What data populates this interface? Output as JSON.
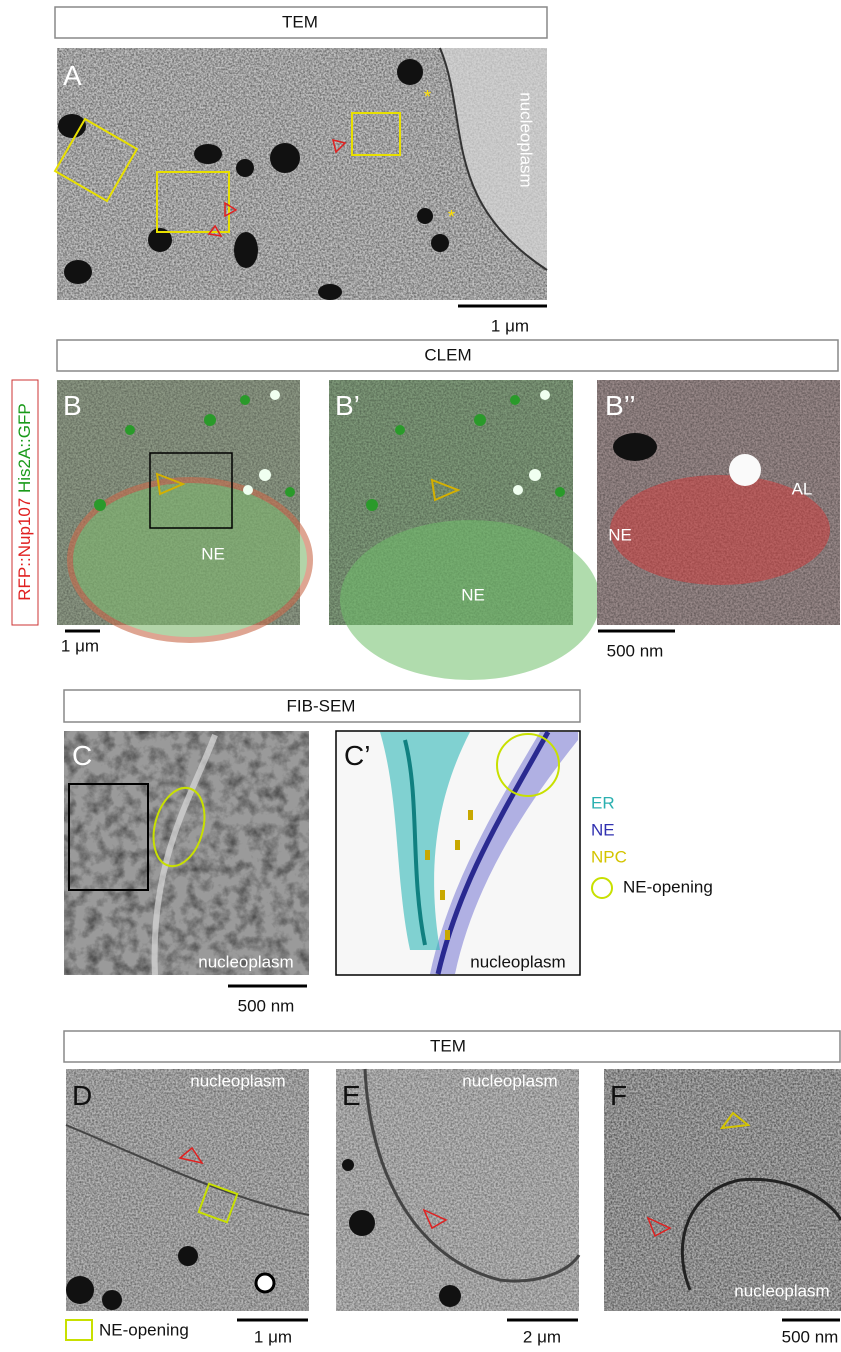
{
  "sections": [
    {
      "title": "TEM",
      "panels": [
        {
          "label": "A",
          "texts": [
            "nucleoplasm"
          ]
        }
      ],
      "scale_bars": [
        "1 μm"
      ]
    },
    {
      "title": "CLEM",
      "channel_labels": [
        "RFP::Nup107",
        "His2A::GFP"
      ],
      "panels": [
        {
          "label": "B",
          "texts": [
            "NE"
          ]
        },
        {
          "label": "B’",
          "texts": [
            "NE"
          ]
        },
        {
          "label": "B’’",
          "texts": [
            "NE",
            "AL"
          ]
        }
      ],
      "scale_bars": [
        "1 μm",
        "500 nm"
      ]
    },
    {
      "title": "FIB-SEM",
      "panels": [
        {
          "label": "C",
          "texts": [
            "nucleoplasm"
          ]
        },
        {
          "label": "C’",
          "texts": [
            "nucleoplasm"
          ]
        }
      ],
      "scale_bars": [
        "500 nm"
      ],
      "legend": [
        "ER",
        "NE",
        "NPC",
        "NE-opening"
      ]
    },
    {
      "title": "TEM",
      "panels": [
        {
          "label": "D",
          "texts": [
            "nucleoplasm"
          ]
        },
        {
          "label": "E",
          "texts": [
            "nucleoplasm"
          ]
        },
        {
          "label": "F",
          "texts": [
            "nucleoplasm"
          ]
        }
      ],
      "scale_bars": [
        "1 μm",
        "2 μm",
        "500 nm"
      ],
      "legend": [
        "NE-opening"
      ]
    }
  ]
}
